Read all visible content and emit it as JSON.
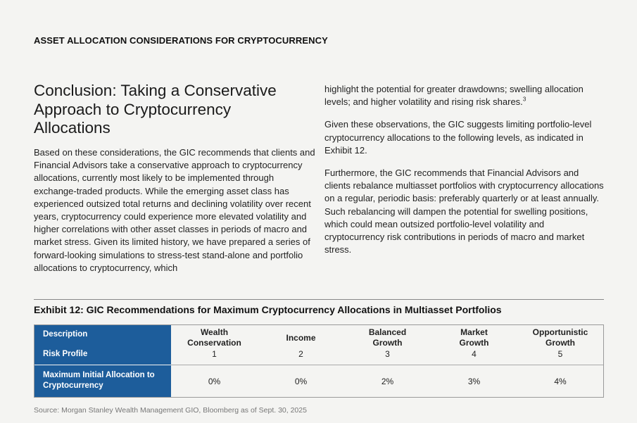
{
  "header": {
    "title": "ASSET ALLOCATION CONSIDERATIONS FOR CRYPTOCURRENCY"
  },
  "conclusion": {
    "heading_lines": [
      "Conclusion: Taking a Conservative",
      "Approach to Cryptocurrency",
      "Allocations"
    ],
    "left_paragraph": "Based on these considerations, the GIC recommends that clients and Financial Advisors take a conservative approach to cryptocurrency allocations, currently most likely to be implemented through exchange-traded products. While the emerging asset class has experienced outsized total returns and declining volatility over recent years, cryptocurrency could experience more elevated volatility and higher correlations with other asset classes in periods of macro and market stress. Given its limited history, we have prepared a series of forward-looking simulations to stress-test stand-alone and portfolio allocations to cryptocurrency, which",
    "right_paragraph_1": "highlight the potential for greater drawdowns; swelling allocation levels; and higher volatility and rising risk shares.",
    "right_paragraph_1_footnote": "3",
    "right_paragraph_2": "Given these observations, the GIC suggests limiting portfolio-level cryptocurrency allocations to the following levels, as indicated in Exhibit 12.",
    "right_paragraph_3": "Furthermore, the GIC recommends that Financial Advisors and clients rebalance multiasset portfolios with cryptocurrency allocations on a regular, periodic basis: preferably quarterly or at least annually. Such rebalancing will dampen the potential for swelling positions, which could mean outsized portfolio-level volatility and cryptocurrency risk contributions in periods of macro and market stress."
  },
  "exhibit": {
    "title": "Exhibit 12: GIC Recommendations for Maximum Cryptocurrency Allocations in Multiasset Portfolios",
    "row_labels": {
      "description": "Description",
      "risk_profile": "Risk Profile",
      "max_allocation_line1": "Maximum Initial Allocation to",
      "max_allocation_line2": "Cryptocurrency"
    },
    "columns": [
      {
        "line1": "Wealth",
        "line2": "Conservation",
        "risk": "1",
        "allocation": "0%"
      },
      {
        "line1": "Income",
        "line2": "",
        "risk": "2",
        "allocation": "0%"
      },
      {
        "line1": "Balanced",
        "line2": "Growth",
        "risk": "3",
        "allocation": "2%"
      },
      {
        "line1": "Market",
        "line2": "Growth",
        "risk": "4",
        "allocation": "3%"
      },
      {
        "line1": "Opportunistic",
        "line2": "Growth",
        "risk": "5",
        "allocation": "4%"
      }
    ]
  },
  "source": "Source: Morgan Stanley Wealth Management GIO, Bloomberg as of Sept. 30, 2025",
  "colors": {
    "table_header_blue": "#1d5d9b"
  }
}
